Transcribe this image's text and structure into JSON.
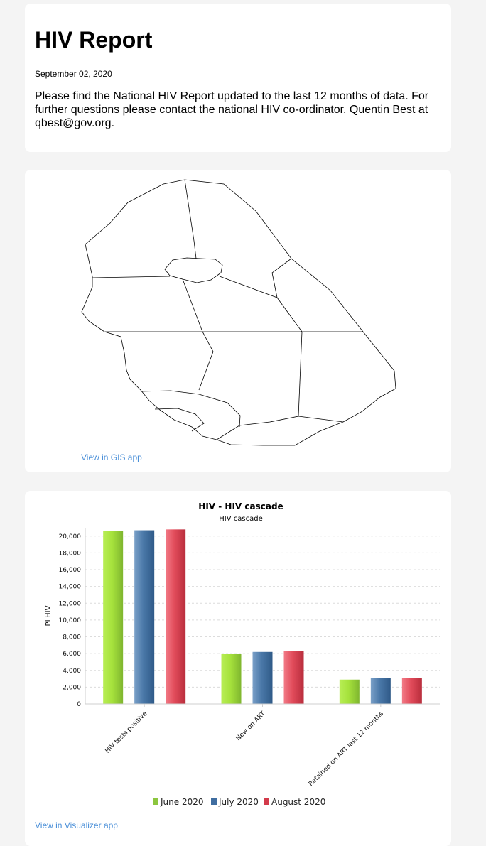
{
  "report": {
    "title": "HIV Report",
    "date": "September 02, 2020",
    "text": "Please find the National HIV Report updated to the last 12 months of data. For further questions please contact the national HIV co-ordinator, Quentin Best at qbest@gov.org."
  },
  "map": {
    "link_label": "View in GIS app"
  },
  "visualizer": {
    "link_label": "View in Visualizer app"
  },
  "colors": {
    "june": "#8cc63f",
    "july": "#3f6da0",
    "august": "#d33a4a",
    "link": "#4a8fd8"
  },
  "chart_data": {
    "type": "bar",
    "title": "HIV - HIV cascade",
    "subtitle": "HIV cascade",
    "xlabel": "",
    "ylabel": "PLHIV",
    "ylim": [
      0,
      21000
    ],
    "yticks": [
      0,
      2000,
      4000,
      6000,
      8000,
      10000,
      12000,
      14000,
      16000,
      18000,
      20000
    ],
    "ytick_labels": [
      "0",
      "2,000",
      "4,000",
      "6,000",
      "8,000",
      "10,000",
      "12,000",
      "14,000",
      "16,000",
      "18,000",
      "20,000"
    ],
    "grid": true,
    "legend_position": "bottom",
    "categories": [
      "HIV tests positive",
      "New on ART",
      "Retained on ART last 12 months"
    ],
    "series": [
      {
        "name": "June 2020",
        "values": [
          20600,
          6000,
          2900
        ]
      },
      {
        "name": "July 2020",
        "values": [
          20700,
          6200,
          3050
        ]
      },
      {
        "name": "August 2020",
        "values": [
          20800,
          6300,
          3050
        ]
      }
    ]
  }
}
